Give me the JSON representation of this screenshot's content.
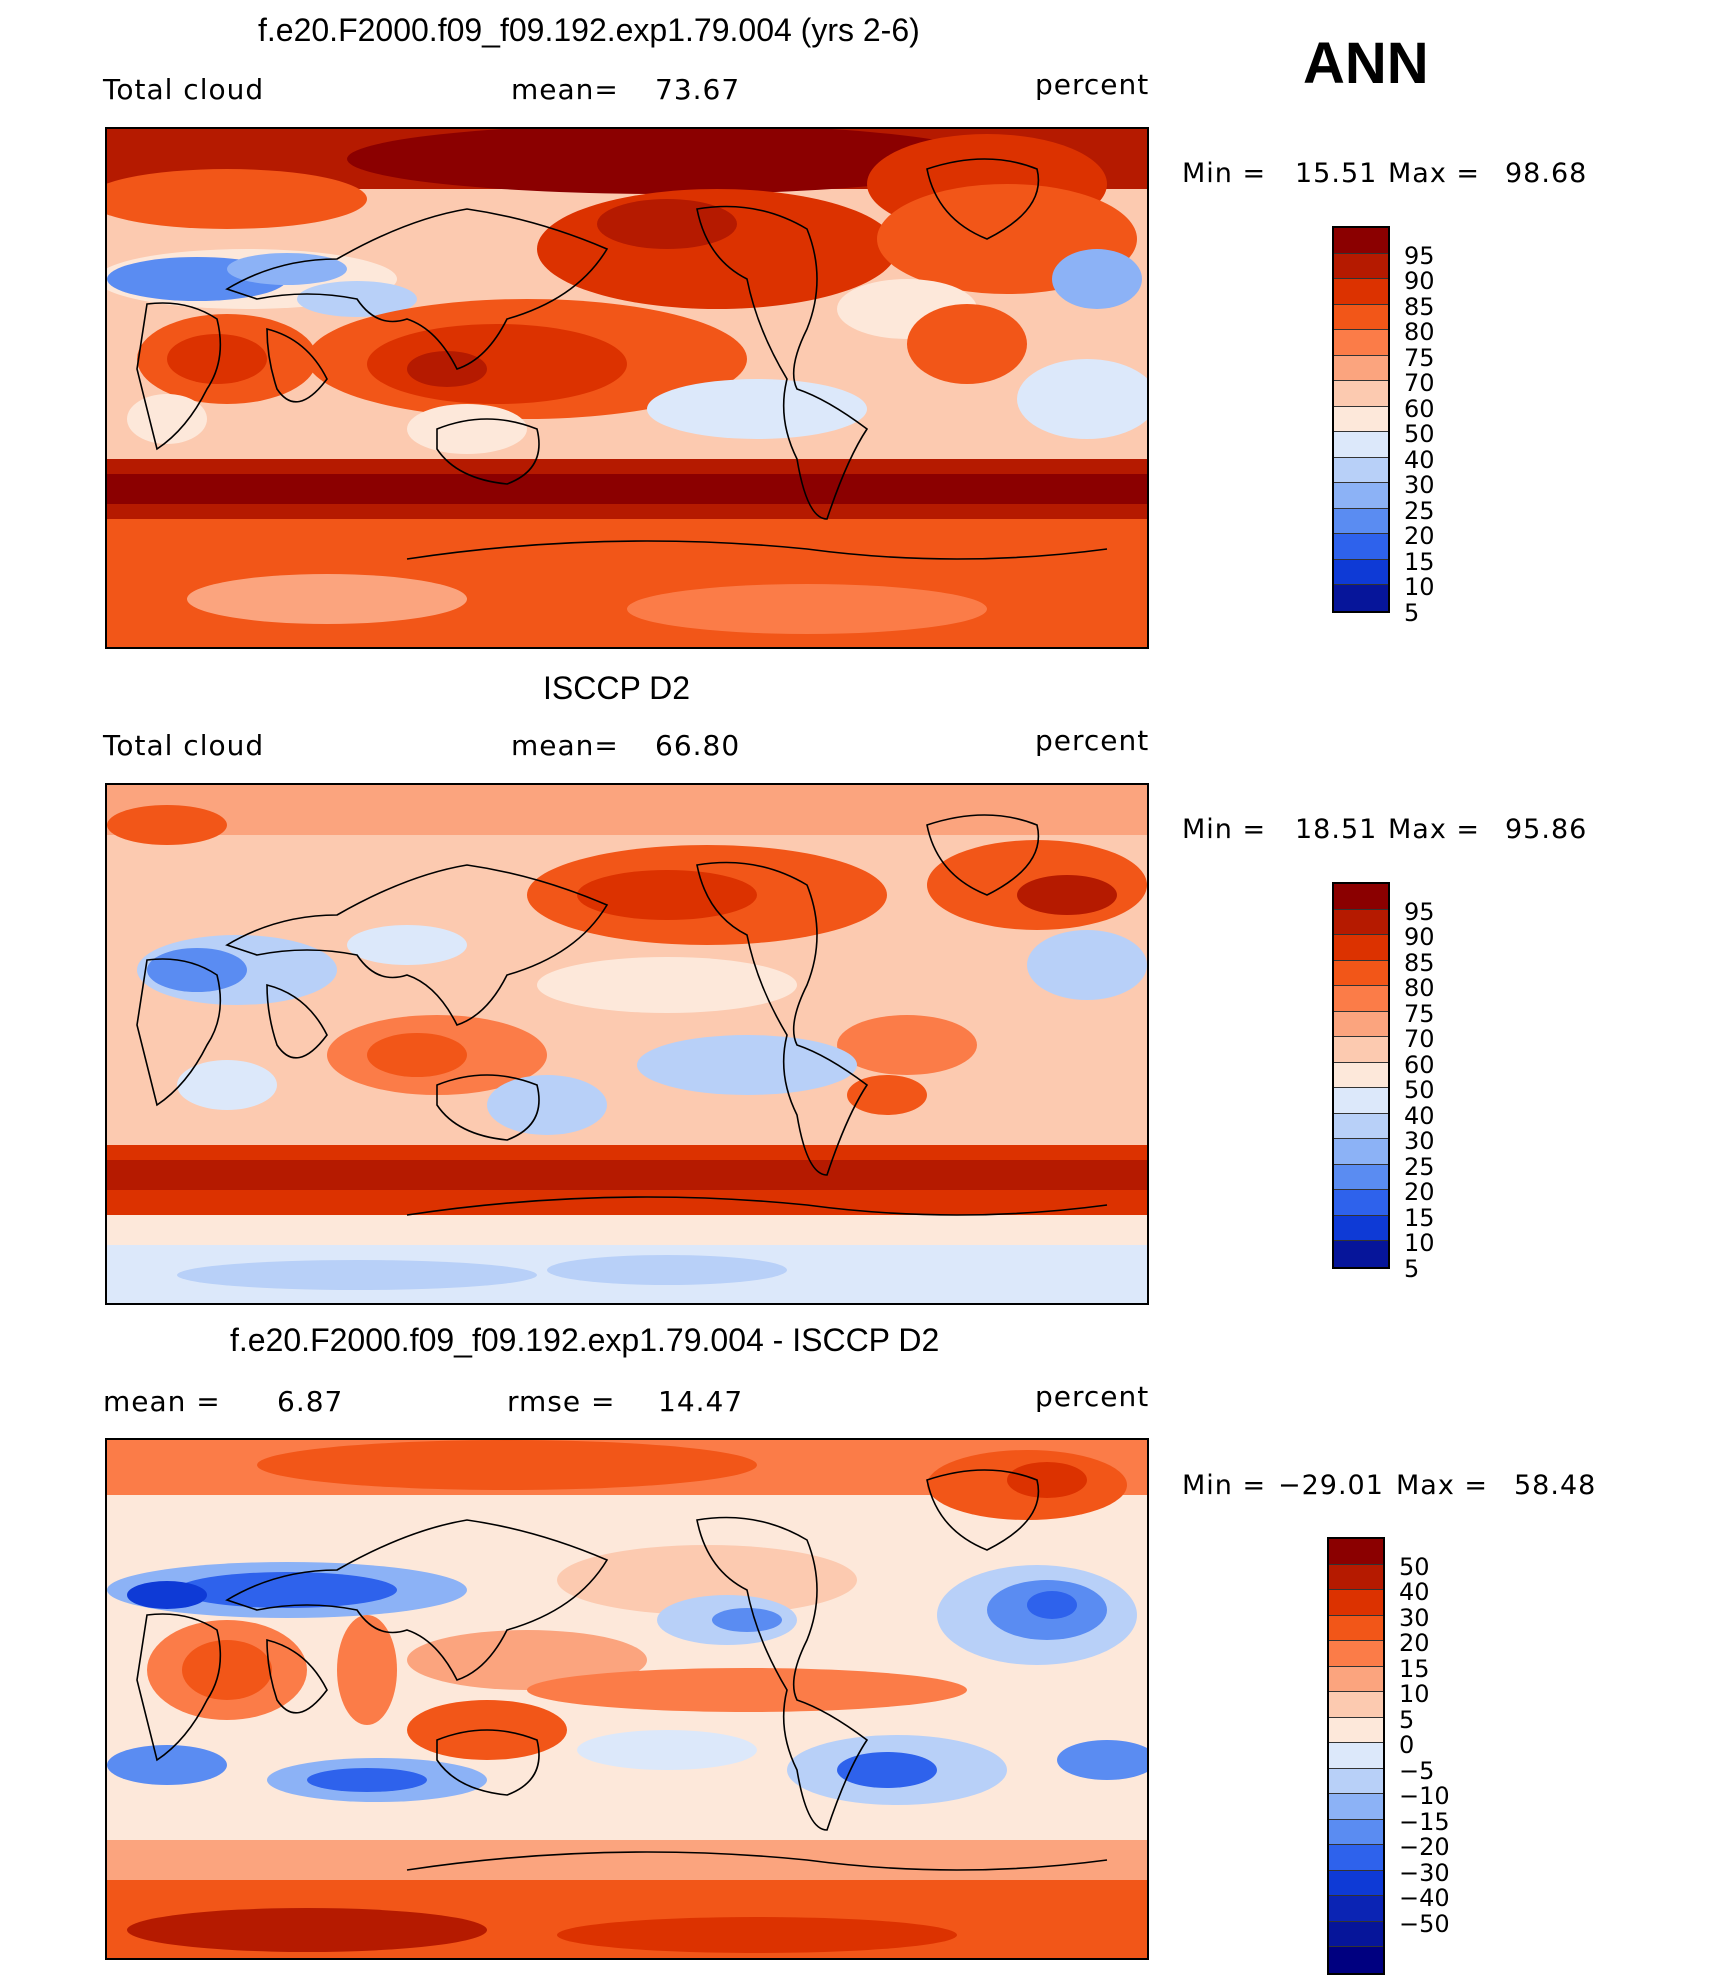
{
  "season": "ANN",
  "panels": [
    {
      "id": "model",
      "title": "f.e20.F2000.f09_f09.192.exp1.79.004 (yrs 2-6)",
      "variable": "Total cloud",
      "stat1_label": "mean=",
      "stat1_value": "73.67",
      "units": "percent",
      "min_label": "Min  =",
      "min_value": "15.51",
      "max_label": "Max  =",
      "max_value": "98.68",
      "colorbar": {
        "colors": [
          "#8b0000",
          "#b51a00",
          "#dc3200",
          "#f25618",
          "#fb7c48",
          "#fba47e",
          "#fccab0",
          "#fde8da",
          "#dce8fa",
          "#b8d0f8",
          "#8cb2f6",
          "#5a8cf2",
          "#2e62ec",
          "#0e3ad6",
          "#06159a"
        ],
        "labels": [
          "95",
          "90",
          "85",
          "80",
          "75",
          "70",
          "60",
          "50",
          "40",
          "30",
          "25",
          "20",
          "15",
          "10",
          "5"
        ]
      }
    },
    {
      "id": "obs",
      "title": "ISCCP D2",
      "variable": "Total cloud",
      "stat1_label": "mean=",
      "stat1_value": "66.80",
      "units": "percent",
      "min_label": "Min  =",
      "min_value": "18.51",
      "max_label": "Max  =",
      "max_value": "95.86",
      "colorbar": {
        "colors": [
          "#8b0000",
          "#b51a00",
          "#dc3200",
          "#f25618",
          "#fb7c48",
          "#fba47e",
          "#fccab0",
          "#fde8da",
          "#dce8fa",
          "#b8d0f8",
          "#8cb2f6",
          "#5a8cf2",
          "#2e62ec",
          "#0e3ad6",
          "#06159a"
        ],
        "labels": [
          "95",
          "90",
          "85",
          "80",
          "75",
          "70",
          "60",
          "50",
          "40",
          "30",
          "25",
          "20",
          "15",
          "10",
          "5"
        ]
      }
    },
    {
      "id": "diff",
      "title": "f.e20.F2000.f09_f09.192.exp1.79.004 - ISCCP D2",
      "stat1_label": "mean =",
      "stat1_value": "6.87",
      "stat2_label": "rmse  =",
      "stat2_value": "14.47",
      "units": "percent",
      "min_label": "Min  =",
      "min_value": "−29.01",
      "max_label": "Max  =",
      "max_value": "58.48",
      "colorbar": {
        "colors": [
          "#8b0000",
          "#b51a00",
          "#dc3200",
          "#f25618",
          "#fb7c48",
          "#fba47e",
          "#fccab0",
          "#fde8da",
          "#dce8fa",
          "#b8d0f8",
          "#8cb2f6",
          "#5a8cf2",
          "#2e62ec",
          "#0e3ad6",
          "#0b24b4",
          "#06159a",
          "#000080"
        ],
        "labels": [
          "50",
          "40",
          "30",
          "20",
          "15",
          "10",
          "5",
          "0",
          "−5",
          "−10",
          "−15",
          "−20",
          "−30",
          "−40",
          "−50"
        ]
      }
    }
  ]
}
